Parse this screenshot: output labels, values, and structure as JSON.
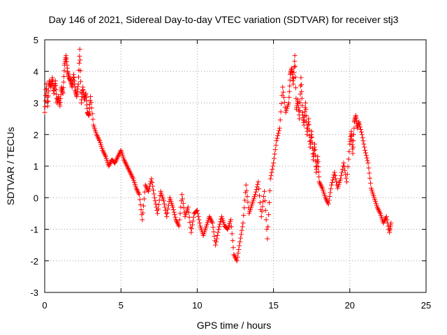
{
  "chart_data": {
    "type": "scatter",
    "title": "Day 146 of 2021, Sidereal Day-to-day VTEC variation (SDTVAR) for receiver stj3",
    "xlabel": "GPS time / hours",
    "ylabel": "SDTVAR / TECUs",
    "xlim": [
      0,
      25
    ],
    "ylim": [
      -3,
      5
    ],
    "xticks": [
      "0",
      "5",
      "10",
      "15",
      "20",
      "25"
    ],
    "yticks": [
      "-3",
      "-2",
      "-1",
      "0",
      "1",
      "2",
      "3",
      "4",
      "5"
    ],
    "grid": true,
    "marker": "+",
    "colors": {
      "marker": "#ff0000",
      "frame": "#000000",
      "grid": "#a0a0a0"
    },
    "series": [
      {
        "name": "SDTVAR",
        "x": [
          0.0,
          0.1,
          0.2,
          0.3,
          0.4,
          0.5,
          0.6,
          0.7,
          0.8,
          0.9,
          1.0,
          1.1,
          1.2,
          1.3,
          1.4,
          1.5,
          1.6,
          1.7,
          1.8,
          1.9,
          2.0,
          2.1,
          2.2,
          2.3,
          2.4,
          2.5,
          2.6,
          2.7,
          2.8,
          2.9,
          3.0,
          3.2,
          3.4,
          3.6,
          3.8,
          4.0,
          4.2,
          4.4,
          4.6,
          4.8,
          5.0,
          5.2,
          5.4,
          5.6,
          5.8,
          6.0,
          6.2,
          6.4,
          6.6,
          6.8,
          7.0,
          7.2,
          7.4,
          7.6,
          7.8,
          8.0,
          8.2,
          8.4,
          8.6,
          8.8,
          9.0,
          9.2,
          9.4,
          9.6,
          9.8,
          10.0,
          10.2,
          10.4,
          10.6,
          10.8,
          11.0,
          11.2,
          11.4,
          11.6,
          11.8,
          12.0,
          12.2,
          12.4,
          12.6,
          12.8,
          13.0,
          13.2,
          13.4,
          13.6,
          13.8,
          14.0,
          14.2,
          14.4,
          14.6,
          14.8,
          15.0,
          15.2,
          15.4,
          15.6,
          15.8,
          16.0,
          16.1,
          16.2,
          16.3,
          16.4,
          16.5,
          16.6,
          16.7,
          16.8,
          16.9,
          17.0,
          17.1,
          17.2,
          17.3,
          17.4,
          17.5,
          17.6,
          17.7,
          17.8,
          17.9,
          18.0,
          18.2,
          18.4,
          18.6,
          18.8,
          19.0,
          19.2,
          19.4,
          19.6,
          19.8,
          20.0,
          20.1,
          20.2,
          20.3,
          20.4,
          20.5,
          20.6,
          20.8,
          21.0,
          21.2,
          21.4,
          21.6,
          21.8,
          22.0,
          22.2,
          22.4,
          22.6,
          22.7
        ],
        "values": [
          2.7,
          3.6,
          2.9,
          3.7,
          3.5,
          3.8,
          3.3,
          3.7,
          3.0,
          3.2,
          2.9,
          3.5,
          3.3,
          4.2,
          4.5,
          4.0,
          3.8,
          3.7,
          3.5,
          3.9,
          3.4,
          3.2,
          3.6,
          4.7,
          3.0,
          3.5,
          3.1,
          3.3,
          2.7,
          2.6,
          3.2,
          2.3,
          2.0,
          1.8,
          1.5,
          1.3,
          1.0,
          1.2,
          1.1,
          1.3,
          1.5,
          1.2,
          1.0,
          0.8,
          0.6,
          0.3,
          0.1,
          -0.7,
          0.4,
          0.2,
          0.6,
          0.0,
          -0.5,
          0.2,
          -0.1,
          -0.6,
          0.0,
          -0.3,
          -0.7,
          -0.9,
          0.1,
          -0.6,
          -0.3,
          -1.1,
          -0.5,
          -0.4,
          -0.9,
          -1.2,
          -0.9,
          -0.6,
          -0.8,
          -1.5,
          -1.0,
          -0.6,
          -0.9,
          -1.0,
          -0.7,
          -1.8,
          -2.0,
          -1.4,
          -0.8,
          0.4,
          -0.5,
          -0.2,
          0.1,
          0.5,
          -0.6,
          0.2,
          -1.3,
          0.6,
          1.1,
          1.8,
          2.2,
          3.5,
          2.7,
          3.0,
          3.9,
          4.1,
          3.6,
          4.5,
          2.8,
          3.1,
          2.5,
          3.8,
          2.7,
          2.3,
          3.0,
          2.0,
          2.5,
          1.6,
          2.1,
          1.2,
          1.7,
          0.8,
          1.3,
          0.5,
          0.3,
          0.0,
          -0.2,
          0.4,
          0.8,
          0.3,
          0.6,
          1.1,
          0.5,
          1.7,
          2.1,
          1.4,
          2.4,
          2.6,
          2.2,
          2.4,
          2.0,
          1.5,
          1.1,
          0.3,
          0.0,
          -0.3,
          -0.5,
          -0.8,
          -0.6,
          -1.1,
          -0.8
        ]
      }
    ]
  }
}
